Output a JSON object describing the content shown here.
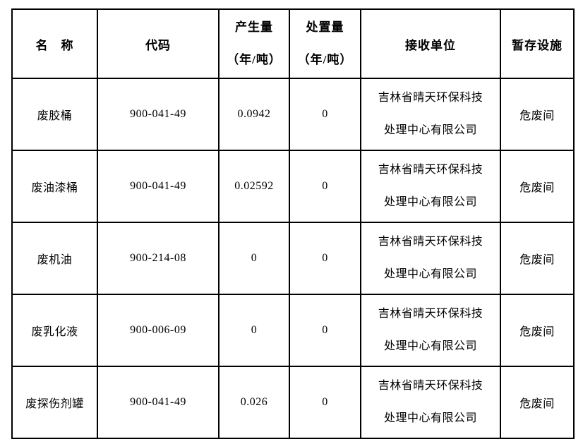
{
  "page": {
    "background_color": "#ffffff",
    "border_color": "#000000",
    "text_color": "#000000"
  },
  "table": {
    "header": {
      "name": "名　称",
      "code": "代码",
      "produced_line1": "产生量",
      "produced_line2": "（年/吨）",
      "disposed_line1": "处置量",
      "disposed_line2": "（年/吨）",
      "receiver": "接收单位",
      "storage": "暂存设施"
    },
    "rows": [
      {
        "name": "废胶桶",
        "code": "900-041-49",
        "produced": "0.0942",
        "disposed": "0",
        "receiver_line1": "吉林省晴天环保科技",
        "receiver_line2": "处理中心有限公司",
        "storage": "危废间"
      },
      {
        "name": "废油漆桶",
        "code": "900-041-49",
        "produced": "0.02592",
        "disposed": "0",
        "receiver_line1": "吉林省晴天环保科技",
        "receiver_line2": "处理中心有限公司",
        "storage": "危废间"
      },
      {
        "name": "废机油",
        "code": "900-214-08",
        "produced": "0",
        "disposed": "0",
        "receiver_line1": "吉林省晴天环保科技",
        "receiver_line2": "处理中心有限公司",
        "storage": "危废间"
      },
      {
        "name": "废乳化液",
        "code": "900-006-09",
        "produced": "0",
        "disposed": "0",
        "receiver_line1": "吉林省晴天环保科技",
        "receiver_line2": "处理中心有限公司",
        "storage": "危废间"
      },
      {
        "name": "废探伤剂罐",
        "code": "900-041-49",
        "produced": "0.026",
        "disposed": "0",
        "receiver_line1": "吉林省晴天环保科技",
        "receiver_line2": "处理中心有限公司",
        "storage": "危废间"
      }
    ]
  }
}
